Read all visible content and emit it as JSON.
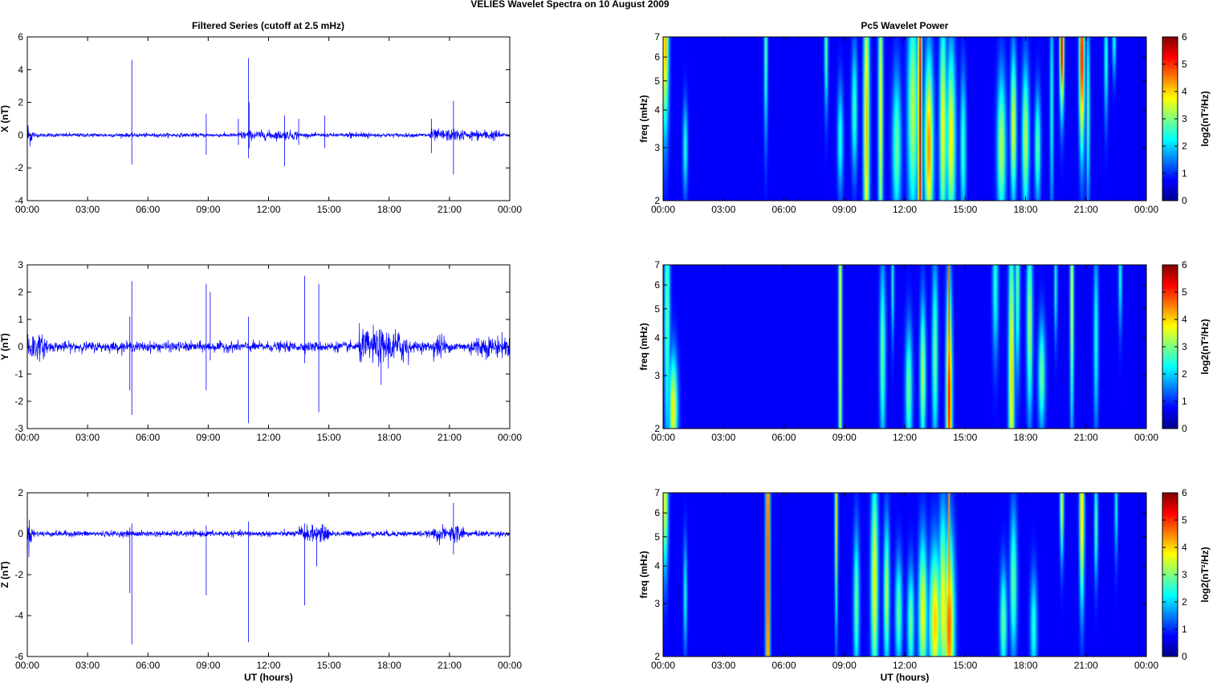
{
  "figure": {
    "suptitle": "VELIES Wavelet Spectra on 10 August    2009",
    "left_title": "Filtered Series (cutoff at 2.5 mHz)",
    "right_title": "Pc5 Wavelet Power"
  },
  "chart_data": [
    {
      "type": "line",
      "ylabel": "X (nT)",
      "xlabel": "",
      "xlim": [
        0,
        24
      ],
      "xticks": [
        "00:00",
        "03:00",
        "06:00",
        "09:00",
        "12:00",
        "15:00",
        "18:00",
        "21:00",
        "00:00"
      ],
      "ylim": [
        -4,
        6
      ],
      "yticks": [
        "-4",
        "-2",
        "0",
        "2",
        "4",
        "6"
      ],
      "color": "#0000ff",
      "noise": 0.06,
      "bursts": [
        [
          10.5,
          13.5,
          0.08
        ],
        [
          16,
          17,
          0.06
        ],
        [
          20,
          21.8,
          0.12
        ],
        [
          22,
          23.5,
          0.1
        ]
      ],
      "spikes": [
        [
          5.2,
          4.6,
          -1.8
        ],
        [
          8.9,
          1.3,
          -1.2
        ],
        [
          10.5,
          1.0,
          -0.6
        ],
        [
          11.0,
          4.7,
          -1.4
        ],
        [
          11.05,
          2.0,
          -0.8
        ],
        [
          12.8,
          1.2,
          -1.9
        ],
        [
          13.5,
          1.0,
          -0.6
        ],
        [
          14.8,
          1.2,
          -0.8
        ],
        [
          20.1,
          1.0,
          -1.1
        ],
        [
          21.2,
          2.1,
          -2.4
        ]
      ]
    },
    {
      "type": "line",
      "ylabel": "Y (nT)",
      "xlabel": "",
      "xlim": [
        0,
        24
      ],
      "xticks": [
        "00:00",
        "03:00",
        "06:00",
        "09:00",
        "12:00",
        "15:00",
        "18:00",
        "21:00",
        "00:00"
      ],
      "ylim": [
        -3,
        3
      ],
      "yticks": [
        "-3",
        "-2",
        "-1",
        "0",
        "1",
        "2",
        "3"
      ],
      "color": "#0000ff",
      "noise": 0.09,
      "bursts": [
        [
          0,
          1,
          0.12
        ],
        [
          16.5,
          19,
          0.22
        ],
        [
          20.2,
          20.8,
          0.14
        ],
        [
          22,
          24,
          0.1
        ]
      ],
      "spikes": [
        [
          5.2,
          2.4,
          -2.5
        ],
        [
          5.1,
          1.1,
          -1.6
        ],
        [
          8.9,
          2.3,
          -1.6
        ],
        [
          9.1,
          2.0,
          -0.5
        ],
        [
          11.0,
          1.1,
          -2.8
        ],
        [
          13.8,
          2.6,
          -0.6
        ],
        [
          14.5,
          2.3,
          -2.4
        ],
        [
          17.6,
          0.6,
          -1.4
        ]
      ]
    },
    {
      "type": "line",
      "ylabel": "Z (nT)",
      "xlabel": "UT (hours)",
      "xlim": [
        0,
        24
      ],
      "xticks": [
        "00:00",
        "03:00",
        "06:00",
        "09:00",
        "12:00",
        "15:00",
        "18:00",
        "21:00",
        "00:00"
      ],
      "ylim": [
        -6,
        2
      ],
      "yticks": [
        "-6",
        "-4",
        "-2",
        "0",
        "2"
      ],
      "color": "#0000ff",
      "noise": 0.07,
      "bursts": [
        [
          13.5,
          15,
          0.12
        ],
        [
          20.2,
          20.8,
          0.12
        ],
        [
          21.0,
          21.8,
          0.16
        ]
      ],
      "spikes": [
        [
          5.2,
          0.5,
          -5.4
        ],
        [
          5.1,
          0.3,
          -2.9
        ],
        [
          8.9,
          0.4,
          -3.0
        ],
        [
          11.0,
          0.6,
          -5.3
        ],
        [
          13.8,
          0.5,
          -3.5
        ],
        [
          14.4,
          0.3,
          -1.6
        ],
        [
          21.2,
          1.5,
          -1.0
        ]
      ]
    },
    {
      "type": "heatmap",
      "ylabel": "freq (mHz)",
      "xlabel": "",
      "xlim": [
        0,
        24
      ],
      "xticks": [
        "00:00",
        "03:00",
        "06:00",
        "09:00",
        "12:00",
        "15:00",
        "18:00",
        "21:00",
        "00:00"
      ],
      "ylim": [
        2,
        7
      ],
      "yscale": "log",
      "yticks": [
        "2",
        "3",
        "4",
        "5",
        "6",
        "7"
      ],
      "colormap": "jet",
      "clim": [
        0,
        6
      ],
      "colorbar_ticks": [
        "0",
        "1",
        "2",
        "3",
        "4",
        "5",
        "6"
      ],
      "colorbar_label": "log2(nT²/Hz)",
      "blobs": [
        [
          0.1,
          6.8,
          0.12,
          0.5,
          4.0
        ],
        [
          1.1,
          3.0,
          0.08,
          0.25,
          2.0
        ],
        [
          5.1,
          6.5,
          0.06,
          0.5,
          2.5
        ],
        [
          8.1,
          6.5,
          0.06,
          0.35,
          2.5
        ],
        [
          8.8,
          3.2,
          0.1,
          0.3,
          2.0
        ],
        [
          9.5,
          4.0,
          0.1,
          0.35,
          2.2
        ],
        [
          10.1,
          3.5,
          0.1,
          0.9,
          4.0
        ],
        [
          10.8,
          4.0,
          0.08,
          0.9,
          3.5
        ],
        [
          11.6,
          3.0,
          0.15,
          0.4,
          2.5
        ],
        [
          12.4,
          4.0,
          0.18,
          0.6,
          3.0
        ],
        [
          12.75,
          3.6,
          0.07,
          1.2,
          5.8
        ],
        [
          13.2,
          3.0,
          0.15,
          0.5,
          4.2
        ],
        [
          13.9,
          3.5,
          0.12,
          0.6,
          3.5
        ],
        [
          14.3,
          3.2,
          0.15,
          0.5,
          3.5
        ],
        [
          14.9,
          3.0,
          0.1,
          0.4,
          2.2
        ],
        [
          16.8,
          3.0,
          0.15,
          0.4,
          3.0
        ],
        [
          17.4,
          3.5,
          0.1,
          0.4,
          3.5
        ],
        [
          18.0,
          3.2,
          0.12,
          0.4,
          3.0
        ],
        [
          18.6,
          3.0,
          0.1,
          0.3,
          2.5
        ],
        [
          19.3,
          4.2,
          0.06,
          0.6,
          2.0
        ],
        [
          19.8,
          6.5,
          0.07,
          0.35,
          5.5
        ],
        [
          20.8,
          6.0,
          0.09,
          0.5,
          5.2
        ],
        [
          21.1,
          4.0,
          0.06,
          0.5,
          2.5
        ],
        [
          22.0,
          6.0,
          0.06,
          0.35,
          2.2
        ],
        [
          22.4,
          6.8,
          0.06,
          0.2,
          2.0
        ]
      ]
    },
    {
      "type": "heatmap",
      "ylabel": "freq (mHz)",
      "xlabel": "",
      "xlim": [
        0,
        24
      ],
      "xticks": [
        "00:00",
        "03:00",
        "06:00",
        "09:00",
        "12:00",
        "15:00",
        "18:00",
        "21:00",
        "00:00"
      ],
      "ylim": [
        2,
        7
      ],
      "yscale": "log",
      "yticks": [
        "2",
        "3",
        "4",
        "5",
        "6",
        "7"
      ],
      "colormap": "jet",
      "clim": [
        0,
        6
      ],
      "colorbar_ticks": [
        "0",
        "1",
        "2",
        "3",
        "4",
        "5",
        "6"
      ],
      "colorbar_label": "log2(nT²/Hz)",
      "blobs": [
        [
          0.5,
          2.3,
          0.15,
          0.3,
          3.5
        ],
        [
          0.2,
          5.0,
          0.1,
          0.8,
          2.5
        ],
        [
          8.8,
          4.5,
          0.06,
          1.4,
          3.5
        ],
        [
          10.9,
          3.5,
          0.1,
          0.5,
          2.5
        ],
        [
          11.4,
          6.0,
          0.05,
          0.3,
          2.0
        ],
        [
          12.2,
          2.7,
          0.12,
          0.35,
          2.5
        ],
        [
          12.9,
          3.0,
          0.1,
          0.4,
          3.0
        ],
        [
          13.5,
          3.5,
          0.1,
          0.5,
          2.5
        ],
        [
          14.2,
          2.5,
          0.1,
          0.6,
          5.2
        ],
        [
          14.2,
          5.5,
          0.04,
          1.0,
          4.5
        ],
        [
          16.5,
          6.0,
          0.1,
          0.4,
          2.0
        ],
        [
          17.3,
          3.0,
          0.1,
          0.8,
          3.8
        ],
        [
          17.6,
          6.0,
          0.08,
          0.5,
          2.5
        ],
        [
          18.2,
          4.5,
          0.1,
          0.5,
          3.0
        ],
        [
          18.8,
          3.0,
          0.12,
          0.3,
          2.5
        ],
        [
          19.5,
          6.0,
          0.05,
          0.3,
          2.0
        ],
        [
          20.3,
          5.5,
          0.06,
          0.7,
          3.5
        ],
        [
          21.5,
          4.0,
          0.08,
          0.5,
          2.0
        ],
        [
          22.7,
          6.5,
          0.06,
          0.3,
          2.0
        ]
      ]
    },
    {
      "type": "heatmap",
      "ylabel": "freq (mHz)",
      "xlabel": "UT (hours)",
      "xlim": [
        0,
        24
      ],
      "xticks": [
        "00:00",
        "03:00",
        "06:00",
        "09:00",
        "12:00",
        "15:00",
        "18:00",
        "21:00",
        "00:00"
      ],
      "ylim": [
        2,
        7
      ],
      "yscale": "log",
      "yticks": [
        "2",
        "3",
        "4",
        "5",
        "6",
        "7"
      ],
      "colormap": "jet",
      "clim": [
        0,
        6
      ],
      "colorbar_ticks": [
        "0",
        "1",
        "2",
        "3",
        "4",
        "5",
        "6"
      ],
      "colorbar_label": "log2(nT²/Hz)",
      "blobs": [
        [
          0.1,
          6.8,
          0.1,
          0.4,
          3.5
        ],
        [
          1.1,
          3.2,
          0.06,
          0.3,
          2.0
        ],
        [
          5.2,
          4.0,
          0.07,
          1.4,
          5.2
        ],
        [
          8.6,
          6.0,
          0.05,
          0.6,
          3.5
        ],
        [
          9.6,
          3.0,
          0.1,
          0.4,
          2.5
        ],
        [
          10.5,
          3.5,
          0.12,
          0.6,
          3.5
        ],
        [
          11.1,
          3.2,
          0.1,
          0.4,
          3.0
        ],
        [
          11.7,
          2.8,
          0.12,
          0.3,
          2.5
        ],
        [
          12.3,
          2.6,
          0.12,
          0.3,
          2.5
        ],
        [
          12.9,
          2.8,
          0.15,
          0.4,
          3.5
        ],
        [
          13.5,
          2.6,
          0.2,
          0.4,
          3.8
        ],
        [
          13.9,
          3.0,
          0.15,
          0.5,
          3.5
        ],
        [
          14.2,
          2.5,
          0.18,
          0.5,
          4.5
        ],
        [
          14.2,
          5.0,
          0.04,
          1.2,
          4.2
        ],
        [
          16.9,
          2.6,
          0.12,
          0.3,
          2.5
        ],
        [
          17.4,
          3.5,
          0.12,
          0.4,
          2.5
        ],
        [
          18.4,
          2.5,
          0.12,
          0.3,
          2.0
        ],
        [
          19.8,
          6.5,
          0.06,
          0.3,
          3.5
        ],
        [
          20.8,
          6.0,
          0.08,
          0.5,
          4.0
        ],
        [
          21.5,
          5.5,
          0.06,
          0.3,
          2.5
        ],
        [
          22.5,
          6.5,
          0.05,
          0.3,
          2.0
        ]
      ]
    }
  ]
}
